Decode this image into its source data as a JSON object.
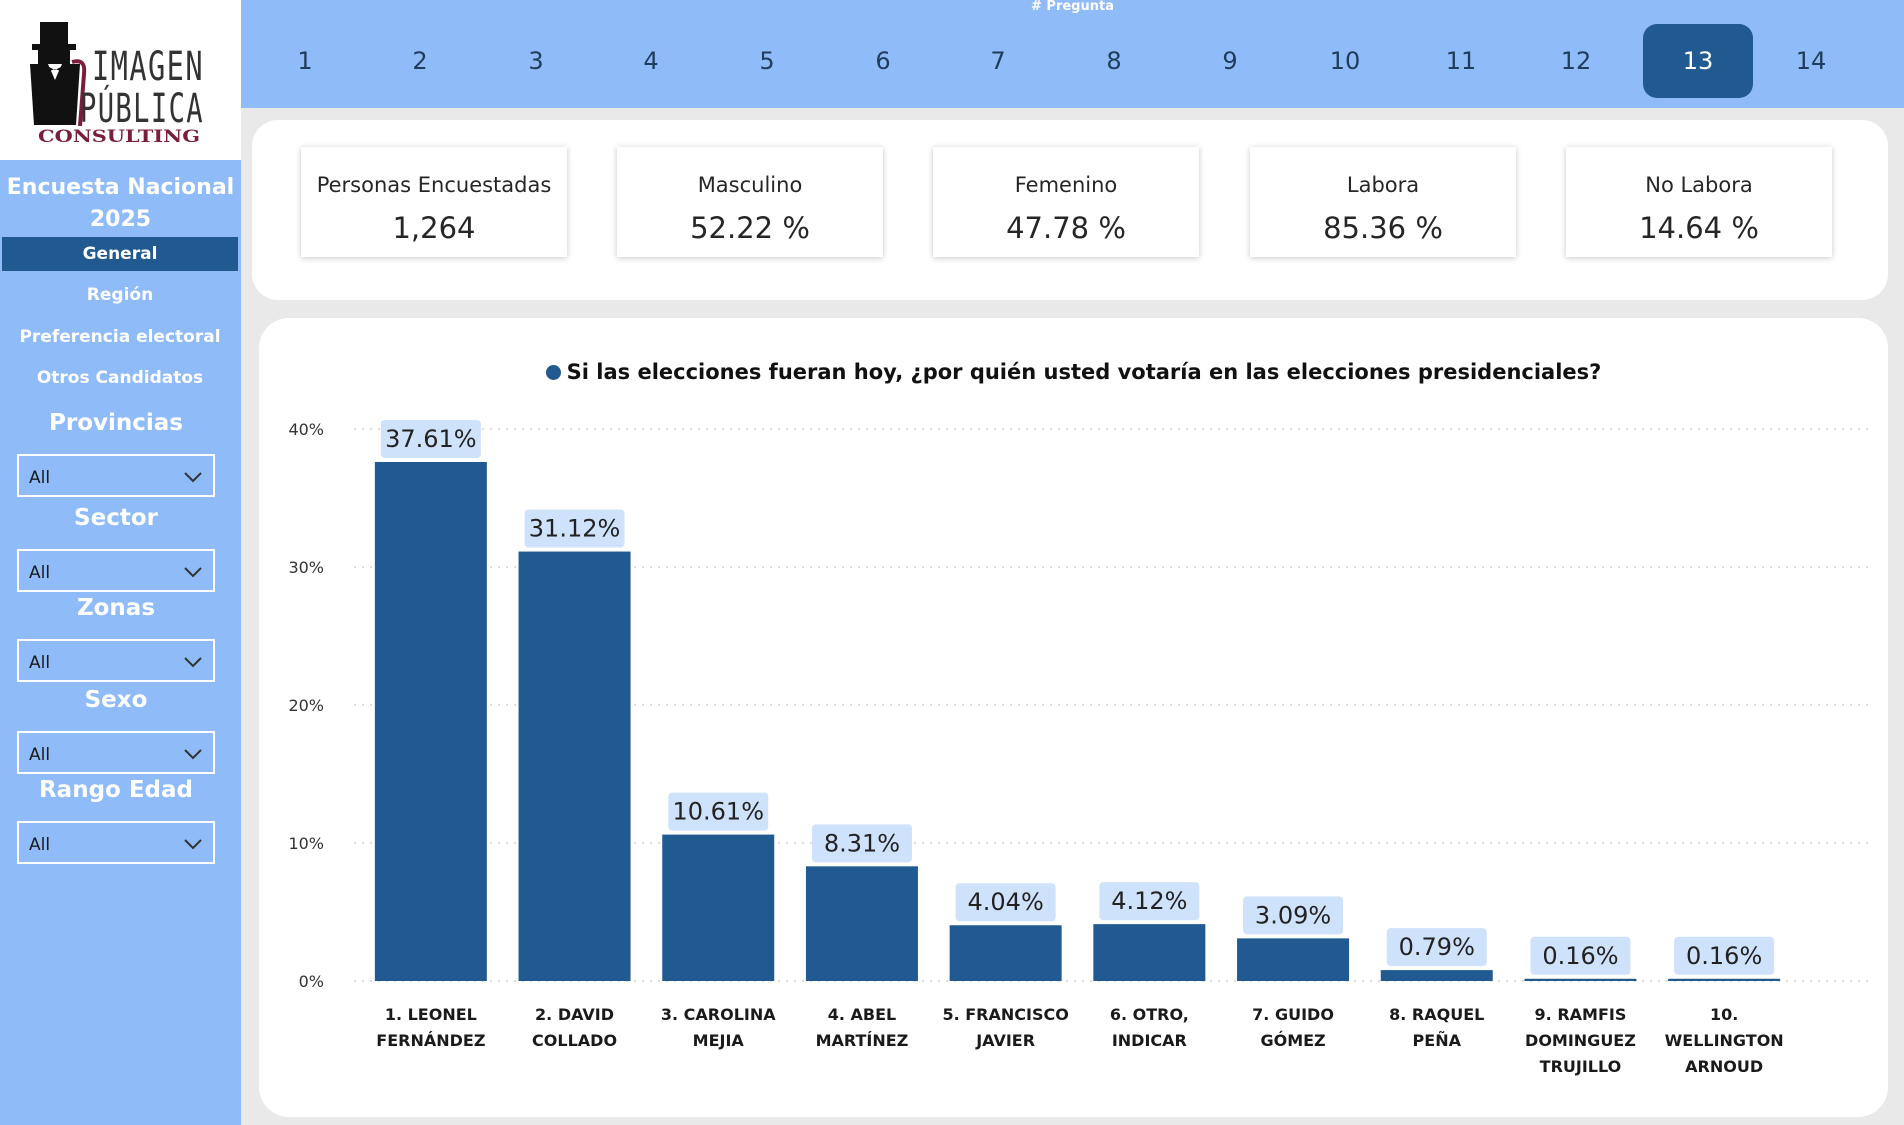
{
  "brand": {
    "logo_line1": "IMAGEN",
    "logo_line2": "PÚBLICA",
    "logo_line3": "CONSULTING"
  },
  "sidebar": {
    "title": "Encuesta Nacional 2025",
    "nav": [
      "General",
      "Región",
      "Preferencia electoral",
      "Otros Candidatos"
    ],
    "active_nav": "General",
    "filters": [
      {
        "label": "Provincias",
        "value": "All"
      },
      {
        "label": "Sector",
        "value": "All"
      },
      {
        "label": "Zonas",
        "value": "All"
      },
      {
        "label": "Sexo",
        "value": "All"
      },
      {
        "label": "Rango Edad",
        "value": "All"
      }
    ]
  },
  "question_selector": {
    "label": "# Pregunta",
    "numbers": [
      "1",
      "2",
      "3",
      "4",
      "5",
      "6",
      "7",
      "8",
      "9",
      "10",
      "11",
      "12",
      "13",
      "14"
    ],
    "selected": "13"
  },
  "kpis": [
    {
      "label": "Personas Encuestadas",
      "value": "1,264"
    },
    {
      "label": "Masculino",
      "value": "52.22 %"
    },
    {
      "label": "Femenino",
      "value": "47.78 %"
    },
    {
      "label": "Labora",
      "value": "85.36 %"
    },
    {
      "label": "No Labora",
      "value": "14.64 %"
    }
  ],
  "colors": {
    "sidebar_bg": "#8fbbf8",
    "accent": "#215a91",
    "bar": "#215a91",
    "data_label_bg": "#cfe2fb"
  },
  "chart_data": {
    "type": "bar",
    "title": "Si las elecciones fueran hoy, ¿por quién usted votaría en las elecciones presidenciales?",
    "categories": [
      [
        "1. LEONEL",
        "FERNÁNDEZ"
      ],
      [
        "2. DAVID",
        "COLLADO"
      ],
      [
        "3. CAROLINA",
        "MEJIA"
      ],
      [
        "4. ABEL",
        "MARTÍNEZ"
      ],
      [
        "5. FRANCISCO",
        "JAVIER"
      ],
      [
        "6. OTRO,",
        "INDICAR"
      ],
      [
        "7. GUIDO",
        "GÓMEZ"
      ],
      [
        "8. RAQUEL",
        "PEÑA"
      ],
      [
        "9. RAMFIS",
        "DOMINGUEZ",
        "TRUJILLO"
      ],
      [
        "10.",
        "WELLINGTON",
        "ARNOUD"
      ]
    ],
    "values": [
      37.61,
      31.12,
      10.61,
      8.31,
      4.04,
      4.12,
      3.09,
      0.79,
      0.16,
      0.16
    ],
    "data_labels": [
      "37.61%",
      "31.12%",
      "10.61%",
      "8.31%",
      "4.04%",
      "4.12%",
      "3.09%",
      "0.79%",
      "0.16%",
      "0.16%"
    ],
    "yticks": [
      0,
      10,
      20,
      30,
      40
    ],
    "ytick_labels": [
      "0%",
      "10%",
      "20%",
      "30%",
      "40%"
    ],
    "ylim": [
      0,
      40
    ],
    "grid": true,
    "xlabel": "",
    "ylabel": ""
  }
}
